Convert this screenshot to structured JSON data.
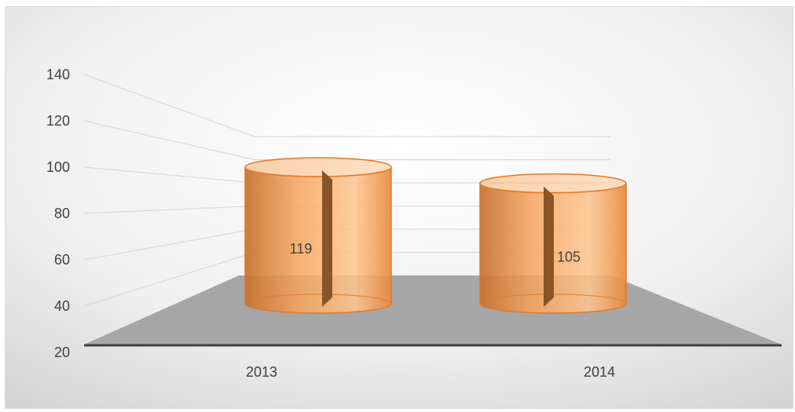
{
  "chart_data": {
    "type": "bar",
    "style": "3d-cylinder",
    "categories": [
      "2013",
      "2014"
    ],
    "values": [
      119,
      105
    ],
    "data_labels": [
      "119",
      "105"
    ],
    "ylim": [
      20,
      140
    ],
    "yticks": [
      "20",
      "40",
      "60",
      "80",
      "100",
      "120",
      "140"
    ],
    "grid": true,
    "legend": "none",
    "colors": {
      "bar": "#f4a35a",
      "bar_dark": "#c8702c",
      "bar_edge": "#e07b2a",
      "floor": "#a6a6a6",
      "axis": "#404040",
      "grid": "#d9d9d9"
    }
  }
}
